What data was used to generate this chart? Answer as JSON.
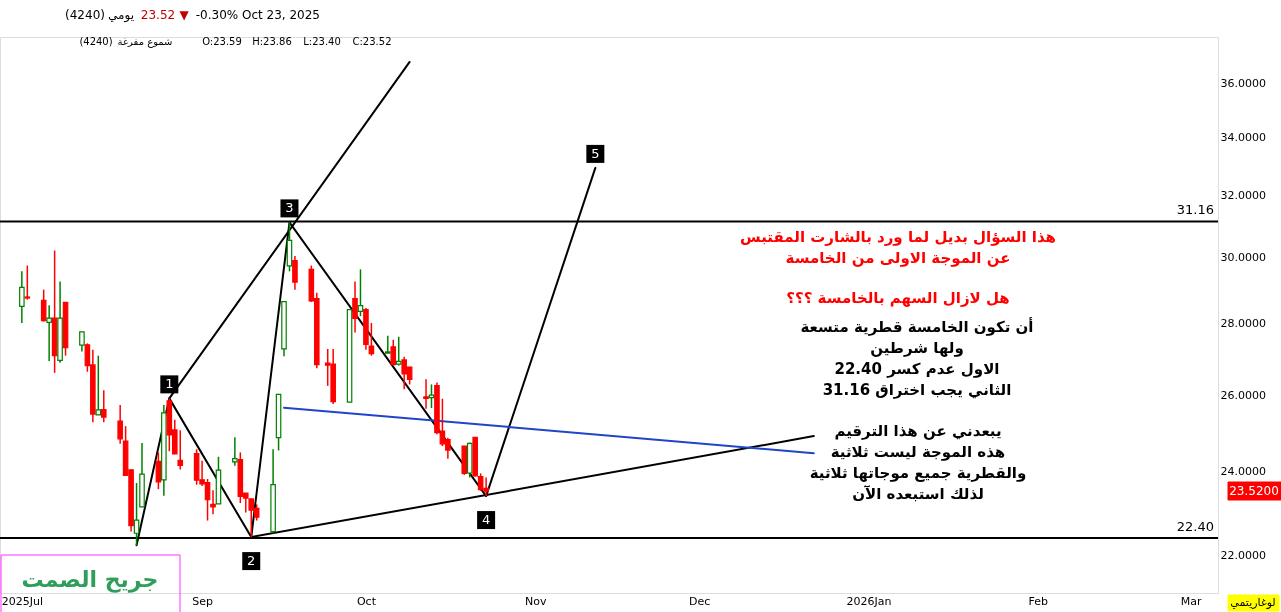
{
  "chart_data": {
    "type": "candlestick",
    "x": [
      "2025-07-30",
      "2025-07-31",
      "2025-08-03",
      "2025-08-04",
      "2025-08-05",
      "2025-08-06",
      "2025-08-07",
      "2025-08-10",
      "2025-08-11",
      "2025-08-12",
      "2025-08-13",
      "2025-08-14",
      "2025-08-17",
      "2025-08-18",
      "2025-08-19",
      "2025-08-20",
      "2025-08-21",
      "2025-08-24",
      "2025-08-25",
      "2025-08-26",
      "2025-08-27",
      "2025-08-28",
      "2025-08-31",
      "2025-09-01",
      "2025-09-02",
      "2025-09-03",
      "2025-09-04",
      "2025-09-07",
      "2025-09-08",
      "2025-09-09",
      "2025-09-10",
      "2025-09-11",
      "2025-09-14",
      "2025-09-15",
      "2025-09-16",
      "2025-09-17",
      "2025-09-18",
      "2025-09-21",
      "2025-09-22",
      "2025-09-24",
      "2025-09-25",
      "2025-09-28",
      "2025-09-29",
      "2025-09-30",
      "2025-10-01",
      "2025-10-02",
      "2025-10-05",
      "2025-10-06",
      "2025-10-07",
      "2025-10-08",
      "2025-10-09",
      "2025-10-12",
      "2025-10-13",
      "2025-10-14",
      "2025-10-15",
      "2025-10-16",
      "2025-10-19",
      "2025-10-20",
      "2025-10-21",
      "2025-10-22",
      "2025-10-23"
    ],
    "ohlc": [
      [
        28.52,
        29.58,
        28.03,
        29.09
      ],
      [
        28.8,
        29.76,
        28.72,
        28.77
      ],
      [
        28.7,
        29.02,
        28.07,
        28.1
      ],
      [
        28.05,
        28.55,
        26.94,
        28.17
      ],
      [
        28.17,
        30.23,
        26.61,
        27.09
      ],
      [
        26.96,
        29.27,
        26.89,
        28.17
      ],
      [
        28.64,
        28.64,
        27.09,
        27.32
      ],
      [
        27.39,
        27.77,
        27.21,
        27.77
      ],
      [
        27.4,
        27.44,
        26.64,
        26.81
      ],
      [
        26.83,
        27.26,
        25.27,
        25.49
      ],
      [
        25.47,
        27.09,
        25.47,
        25.6
      ],
      [
        25.61,
        26.13,
        25.27,
        25.41
      ],
      [
        25.3,
        25.73,
        24.71,
        24.84
      ],
      [
        24.78,
        25.17,
        23.91,
        23.91
      ],
      [
        24.05,
        24.05,
        22.55,
        22.69
      ],
      [
        22.51,
        23.72,
        22.23,
        22.82
      ],
      [
        23.14,
        24.73,
        23.14,
        23.94
      ],
      [
        24.26,
        24.49,
        23.57,
        23.75
      ],
      [
        23.8,
        25.73,
        23.41,
        25.52
      ],
      [
        25.84,
        25.91,
        24.52,
        24.94
      ],
      [
        25.07,
        25.34,
        24.45,
        24.45
      ],
      [
        24.29,
        25.06,
        24.06,
        24.16
      ],
      [
        24.46,
        24.57,
        23.68,
        23.79
      ],
      [
        23.8,
        24.28,
        23.65,
        23.7
      ],
      [
        23.73,
        23.82,
        22.81,
        23.31
      ],
      [
        23.2,
        23.54,
        22.96,
        23.14
      ],
      [
        23.21,
        24.38,
        23.21,
        24.04
      ],
      [
        24.25,
        24.88,
        24.15,
        24.33
      ],
      [
        24.31,
        24.49,
        23.23,
        23.39
      ],
      [
        23.47,
        23.47,
        23.0,
        23.35
      ],
      [
        23.33,
        23.33,
        22.42,
        23.06
      ],
      [
        23.1,
        23.2,
        22.81,
        22.89
      ],
      [
        22.55,
        24.57,
        22.51,
        23.68
      ],
      [
        24.87,
        26.02,
        24.54,
        26.02
      ],
      [
        27.28,
        28.66,
        27.07,
        28.66
      ],
      [
        29.75,
        31.13,
        29.58,
        30.55
      ],
      [
        29.91,
        30.06,
        29.02,
        29.25
      ],
      [
        29.64,
        29.76,
        28.65,
        28.68
      ],
      [
        28.75,
        28.93,
        26.74,
        26.84
      ],
      [
        26.88,
        27.28,
        26.25,
        26.82
      ],
      [
        26.85,
        27.28,
        25.76,
        25.82
      ],
      [
        25.81,
        28.42,
        25.81,
        28.42
      ],
      [
        28.75,
        29.27,
        27.75,
        28.16
      ],
      [
        28.37,
        29.64,
        28.23,
        28.54
      ],
      [
        28.42,
        28.47,
        27.26,
        27.41
      ],
      [
        27.36,
        28.03,
        27.09,
        27.15
      ],
      [
        27.16,
        27.66,
        27.16,
        27.2
      ],
      [
        27.34,
        27.54,
        26.84,
        26.84
      ],
      [
        26.85,
        27.63,
        26.81,
        26.93
      ],
      [
        26.97,
        27.06,
        26.16,
        26.58
      ],
      [
        26.77,
        26.77,
        26.29,
        26.43
      ],
      [
        25.95,
        26.43,
        25.63,
        25.91
      ],
      [
        25.93,
        26.29,
        25.65,
        26.0
      ],
      [
        26.26,
        26.34,
        24.96,
        25.0
      ],
      [
        25.04,
        25.9,
        24.65,
        24.71
      ],
      [
        24.82,
        24.87,
        24.33,
        24.55
      ],
      [
        24.65,
        24.65,
        23.92,
        23.96
      ],
      [
        23.97,
        24.74,
        23.86,
        24.72
      ],
      [
        24.88,
        24.88,
        23.88,
        23.9
      ],
      [
        23.88,
        23.96,
        23.53,
        23.56
      ],
      [
        23.59,
        23.86,
        23.4,
        23.52
      ]
    ],
    "series": [
      {
        "type": "line",
        "color": "#000000",
        "x": [
          "2025-08-20",
          "2025-08-26",
          "2025-09-10",
          "2025-09-17",
          "2025-10-23",
          "2025-11-12"
        ],
        "values": [
          22.23,
          25.91,
          22.42,
          31.13,
          23.4,
          32.95
        ]
      },
      {
        "type": "line",
        "color": "#000000",
        "x": [
          "2025-08-26",
          "2025-10-09"
        ],
        "values": [
          25.91,
          36.8
        ]
      },
      {
        "type": "line",
        "color": "#000000",
        "x": [
          "2025-09-10",
          "2025-12-22"
        ],
        "values": [
          22.42,
          24.91
        ]
      },
      {
        "type": "line",
        "color": "#1f45c8",
        "x": [
          "2025-12-22",
          "2025-09-16"
        ],
        "values": [
          24.47,
          25.66
        ]
      }
    ],
    "ref_lines": [
      {
        "axis": "y",
        "value": 31.16,
        "label": "31.16",
        "color": "#000000"
      },
      {
        "axis": "y",
        "value": 22.4,
        "label": "22.40",
        "color": "#000000"
      }
    ],
    "title": "(4240)",
    "subtitle": "شموع مفرغة",
    "annotations": [
      "يومي",
      "23.52",
      "▼",
      "-0.30%",
      "Oct 23, 2025",
      "(4240)",
      "O:23.59",
      "H:23.86",
      "L:23.40",
      "C:23.52",
      "هذا السؤال بديل لما ورد بالشارت المقتبس\nعن الموجة الاولى من الخامسة",
      "هل لازال السهم بالخامسة ؟؟؟",
      "أن تكون الخامسة قطرية متسعة\nولها شرطين\nالاول عدم كسر 22.40\nالثاني يجب اختراق 31.16",
      "يبعدني عن هذا الترقيم\nهذه الموجة ليست ثلاثية\nوالقطرية جميع موجاتها ثلاثية\nلذلك استبعده الآن",
      "جريح الصمت",
      "لوغاريتمي",
      "23.5200",
      {
        "text": "1",
        "x": "2025-08-26",
        "y": 25.91
      },
      {
        "text": "2",
        "x": "2025-09-10",
        "y": 22.42
      },
      {
        "text": "3",
        "x": "2025-09-17",
        "y": 31.13
      },
      {
        "text": "4",
        "x": "2025-10-23",
        "y": 23.4
      },
      {
        "text": "5",
        "x": "2025-11-12",
        "y": 32.95
      }
    ],
    "log": "y",
    "grid": false,
    "xlim": [
      "2025-07-26",
      "2026-03-06"
    ],
    "xticks": [
      {
        "value": "2025-07-30",
        "label": "2025Jul"
      },
      {
        "value": "2025-09-01",
        "label": "Sep"
      },
      {
        "value": "2025-10-01",
        "label": "Oct"
      },
      {
        "value": "2025-11-01",
        "label": "Nov"
      },
      {
        "value": "2025-12-01",
        "label": "Dec"
      },
      {
        "value": "2026-01-01",
        "label": "2026Jan"
      },
      {
        "value": "2026-02-01",
        "label": "Feb"
      },
      {
        "value": "2026-03-01",
        "label": "Mar"
      }
    ],
    "ylim": [
      21.15,
      37.77
    ],
    "yticks": [
      {
        "value": 22,
        "label": "22.0000"
      },
      {
        "value": 24,
        "label": "24.0000"
      },
      {
        "value": 26,
        "label": "26.0000"
      },
      {
        "value": 28,
        "label": "28.0000"
      },
      {
        "value": 30,
        "label": "30.0000"
      },
      {
        "value": 32,
        "label": "32.0000"
      },
      {
        "value": 34,
        "label": "34.0000"
      },
      {
        "value": 36,
        "label": "36.0000"
      }
    ]
  }
}
